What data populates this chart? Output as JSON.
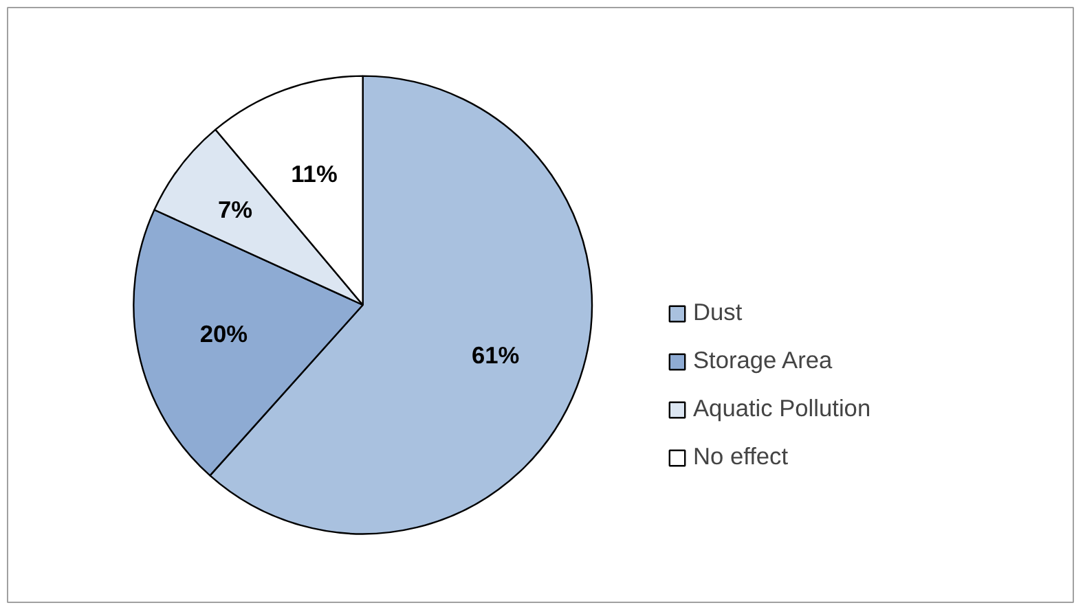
{
  "chart_data": {
    "type": "pie",
    "categories": [
      "Dust",
      "Storage Area",
      "Aquatic Pollution",
      "No effect"
    ],
    "values": [
      61,
      20,
      7,
      11
    ],
    "colors": [
      "#a9c1df",
      "#8eabd3",
      "#dce6f2",
      "#ffffff"
    ],
    "value_labels": [
      "61%",
      "20%",
      "7%",
      "11%"
    ],
    "legend": "right"
  }
}
